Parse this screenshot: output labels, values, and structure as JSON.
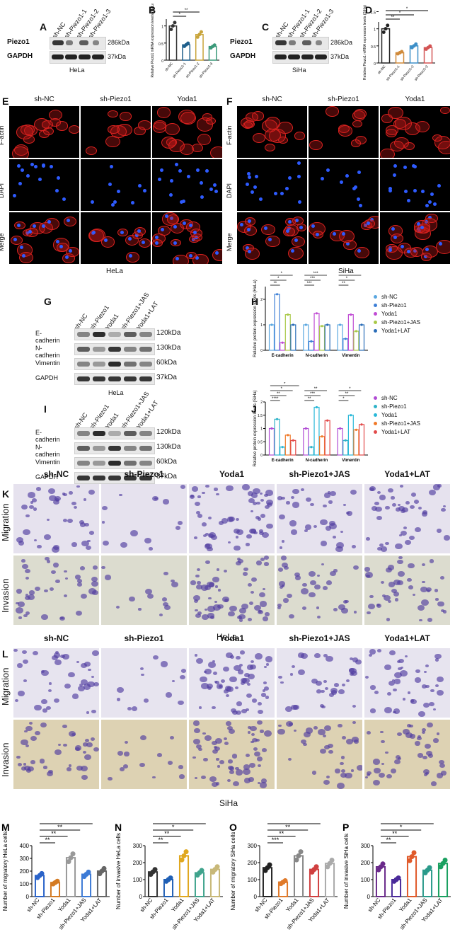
{
  "panels": {
    "A": {
      "letter": "A",
      "target": "Piezo1",
      "control": "GAPDH",
      "lanes": [
        "sh-NC",
        "sh-Piezo1-1",
        "sh-Piezo1-2",
        "sh-Piezo1-3"
      ],
      "size1": "286kDa",
      "size2": "37kDa",
      "cell": "HeLa"
    },
    "C": {
      "letter": "C",
      "target": "Piezo1",
      "control": "GAPDH",
      "lanes": [
        "sh-NC",
        "sh-Piezo1-1",
        "sh-Piezo1-2",
        "sh-Piezo1-3"
      ],
      "size1": "286kDa",
      "size2": "37kDa",
      "cell": "SiHa"
    },
    "E": {
      "letter": "E",
      "cols": [
        "sh-NC",
        "sh-Piezo1",
        "Yoda1"
      ],
      "rows": [
        "F-actin",
        "DAPI",
        "Merge"
      ],
      "cell": "HeLa"
    },
    "F": {
      "letter": "F",
      "cols": [
        "sh-NC",
        "sh-Piezo1",
        "Yoda1"
      ],
      "rows": [
        "F-actin",
        "DAPI",
        "Merge"
      ],
      "cell": "SiHa"
    },
    "G": {
      "letter": "G",
      "lanes": [
        "sh-NC",
        "sh-Piezo1",
        "Yoda1",
        "sh-Piezo1+JAS",
        "Yoda1+LAT"
      ],
      "proteins": [
        "E-cadherin",
        "N-cadherin",
        "Vimentin",
        "GAPDH"
      ],
      "sizes": [
        "120kDa",
        "130kDa",
        "60kDa",
        "37kDa"
      ],
      "cell": "HeLa"
    },
    "I": {
      "letter": "I",
      "lanes": [
        "sh-NC",
        "sh-Piezo1",
        "Yoda1",
        "sh-Piezo1+JAS",
        "Yoda1+LAT"
      ],
      "proteins": [
        "E-cadherin",
        "N-cadherin",
        "Vimentin",
        "GAPDH"
      ],
      "sizes": [
        "120kDa",
        "130kDa",
        "60kDa",
        "37kDa"
      ],
      "cell": "SiHa"
    },
    "K": {
      "letter": "K",
      "cols": [
        "sh-NC",
        "sh-Piezo1",
        "Yoda1",
        "sh-Piezo1+JAS",
        "Yoda1+LAT"
      ],
      "rows": [
        "Migration",
        "Invasion"
      ],
      "cell": "HeLa"
    },
    "L": {
      "letter": "L",
      "cols": [
        "sh-NC",
        "sh-Piezo1",
        "Yoda1",
        "sh-Piezo1+JAS",
        "Yoda1+LAT"
      ],
      "rows": [
        "Migration",
        "Invasion"
      ],
      "cell": "SiHa"
    }
  },
  "colors": {
    "nc": "#333333",
    "kd": "#1f5f8b",
    "yoda": "#c8a43a",
    "jas": "#3b9a7a",
    "lat": "#9a9a9a"
  },
  "chart_data": [
    {
      "id": "B",
      "type": "bar",
      "letter": "B",
      "ylabel": "Relative Piezo1 mRNA expression levels (HeLa)",
      "categories": [
        "sh-NC",
        "sh-Piezo1-1",
        "sh-Piezo1-2",
        "sh-Piezo1-3"
      ],
      "values": [
        1.0,
        0.45,
        0.75,
        0.4
      ],
      "ylim": [
        0,
        1.2
      ],
      "sig": [
        "*",
        "**"
      ]
    },
    {
      "id": "D",
      "type": "bar",
      "letter": "D",
      "ylabel": "Relative Piezo1 mRNA expression levels (SiHa)",
      "categories": [
        "sh-NC",
        "sh-Piezo1-1",
        "sh-Piezo1-2",
        "sh-Piezo1-3"
      ],
      "values": [
        1.0,
        0.3,
        0.5,
        0.45
      ],
      "ylim": [
        0,
        1.2
      ],
      "sig": [
        "**",
        "*",
        "*"
      ]
    },
    {
      "id": "H",
      "type": "bar",
      "letter": "H",
      "ylabel": "Relative protein expression levels (HeLa)",
      "categories": [
        "E-cadherin",
        "N-cadherin",
        "Vimentin"
      ],
      "series": [
        {
          "name": "sh-NC",
          "values": [
            1.0,
            1.0,
            1.0
          ]
        },
        {
          "name": "sh-Piezo1",
          "values": [
            2.2,
            0.35,
            0.45
          ]
        },
        {
          "name": "Yoda1",
          "values": [
            0.3,
            1.45,
            1.4
          ]
        },
        {
          "name": "sh-Piezo1+JAS",
          "values": [
            1.4,
            0.95,
            0.75
          ]
        },
        {
          "name": "Yoda1+LAT",
          "values": [
            1.0,
            1.0,
            1.0
          ]
        }
      ],
      "ylim": [
        0,
        2.5
      ],
      "sig": [
        "**",
        "***",
        "**",
        "*",
        "***",
        "*",
        "*",
        "***",
        "*"
      ]
    },
    {
      "id": "J",
      "type": "bar",
      "letter": "J",
      "ylabel": "Relative protein expression levels (SiHa)",
      "categories": [
        "E-cadherin",
        "N-cadherin",
        "Vimentin"
      ],
      "series": [
        {
          "name": "sh-NC",
          "values": [
            1.0,
            1.0,
            1.0
          ]
        },
        {
          "name": "sh-Piezo1",
          "values": [
            1.35,
            0.3,
            0.55
          ]
        },
        {
          "name": "Yoda1",
          "values": [
            0.3,
            1.8,
            1.5
          ]
        },
        {
          "name": "sh-Piezo1+JAS",
          "values": [
            0.75,
            0.7,
            0.95
          ]
        },
        {
          "name": "Yoda1+LAT",
          "values": [
            0.55,
            1.3,
            1.15
          ]
        }
      ],
      "ylim": [
        0,
        2.0
      ],
      "sig": [
        "****",
        "**",
        "*",
        "**",
        "***",
        "**",
        "*",
        "**",
        "*",
        "*"
      ]
    },
    {
      "id": "M",
      "type": "bar",
      "letter": "M",
      "ylabel": "Number of migratory HeLa cells",
      "categories": [
        "sh-NC",
        "sh-Piezo1",
        "Yoda1",
        "sh-Piezo1+JAS",
        "Yoda1+LAT"
      ],
      "values": [
        165,
        110,
        305,
        175,
        200
      ],
      "ylim": [
        0,
        400
      ],
      "sig": [
        "**",
        "**",
        "**",
        "**"
      ]
    },
    {
      "id": "N",
      "type": "bar",
      "letter": "N",
      "ylabel": "Number of invasive HeLa cells",
      "categories": [
        "sh-NC",
        "sh-Piezo1",
        "Yoda1",
        "sh-Piezo1+JAS",
        "Yoda1+LAT"
      ],
      "values": [
        145,
        100,
        240,
        140,
        160
      ],
      "ylim": [
        0,
        300
      ],
      "sig": [
        "**",
        "**",
        "*",
        "**"
      ]
    },
    {
      "id": "O",
      "type": "bar",
      "letter": "O",
      "ylabel": "Number of migratory SiHa cells",
      "categories": [
        "sh-NC",
        "sh-Piezo1",
        "Yoda1",
        "sh-Piezo1+JAS",
        "Yoda1+LAT"
      ],
      "values": [
        170,
        85,
        240,
        160,
        195
      ],
      "ylim": [
        0,
        300
      ],
      "sig": [
        "***",
        "**",
        "**",
        "**"
      ]
    },
    {
      "id": "P",
      "type": "bar",
      "letter": "P",
      "ylabel": "Number of invasive SiHa cells",
      "categories": [
        "sh-NC",
        "sh-Piezo1",
        "Yoda1",
        "sh-Piezo1+JAS",
        "Yoda1+LAT"
      ],
      "values": [
        175,
        100,
        235,
        155,
        195
      ],
      "ylim": [
        0,
        300
      ],
      "sig": [
        "**",
        "**",
        "*",
        "*"
      ]
    }
  ],
  "legend_H": [
    "sh-NC",
    "sh-Piezo1",
    "Yoda1",
    "sh-Piezo1+JAS",
    "Yoda1+LAT"
  ],
  "legend_J": [
    "sh-NC",
    "sh-Piezo1",
    "Yoda1",
    "sh-Piezo1+JAS",
    "Yoda1+LAT"
  ],
  "legend_colors_H": [
    "#5aa7e0",
    "#3d7fd6",
    "#c04bd4",
    "#a9c947",
    "#2a6db8"
  ],
  "legend_colors_J": [
    "#b04bd4",
    "#2fb3c8",
    "#29b8d8",
    "#f07a2a",
    "#e24a4a"
  ]
}
